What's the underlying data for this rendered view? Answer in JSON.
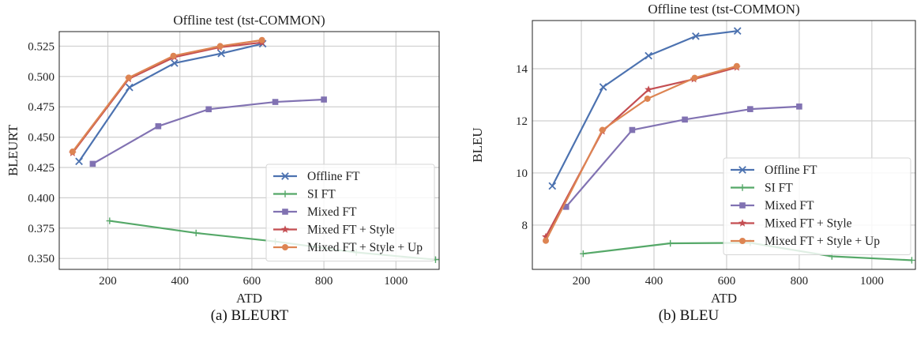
{
  "colors": {
    "Offline FT": "#4c72b0",
    "SI FT": "#55a868",
    "Mixed FT": "#8172b2",
    "Mixed FT + Style": "#c44e52",
    "Mixed FT + Style + Up": "#dd8452"
  },
  "legend_entries": [
    "Offline FT",
    "SI FT",
    "Mixed FT",
    "Mixed FT + Style",
    "Mixed FT + Style + Up"
  ],
  "captions": [
    "(a) BLEURT",
    "(b) BLEU"
  ],
  "chart_data": [
    {
      "type": "line",
      "title": "Offline test (tst-COMMON)",
      "xlabel": "ATD",
      "ylabel": "BLEURT",
      "xlim": [
        65,
        1120
      ],
      "ylim": [
        0.341,
        0.537
      ],
      "xticks": [
        200,
        400,
        600,
        800,
        1000
      ],
      "yticks": [
        0.35,
        0.375,
        0.4,
        0.425,
        0.45,
        0.475,
        0.5,
        0.525
      ],
      "ytick_labels": [
        "0.350",
        "0.375",
        "0.400",
        "0.425",
        "0.450",
        "0.475",
        "0.500",
        "0.525"
      ],
      "grid": true,
      "legend": "lower-right",
      "series": [
        {
          "name": "Offline FT",
          "marker": "x",
          "x": [
            120,
            260,
            385,
            515,
            630
          ],
          "y": [
            0.43,
            0.491,
            0.511,
            0.519,
            0.527
          ]
        },
        {
          "name": "SI FT",
          "marker": "plus",
          "x": [
            205,
            445,
            665,
            890,
            1110
          ],
          "y": [
            0.381,
            0.371,
            0.364,
            0.355,
            0.349
          ]
        },
        {
          "name": "Mixed FT",
          "marker": "square",
          "x": [
            158,
            340,
            480,
            665,
            800
          ],
          "y": [
            0.428,
            0.459,
            0.473,
            0.479,
            0.481
          ]
        },
        {
          "name": "Mixed FT + Style",
          "marker": "star",
          "x": [
            102,
            258,
            385,
            510,
            628
          ],
          "y": [
            0.437,
            0.498,
            0.516,
            0.524,
            0.528
          ]
        },
        {
          "name": "Mixed FT + Style + Up",
          "marker": "circle",
          "x": [
            102,
            258,
            382,
            512,
            628
          ],
          "y": [
            0.438,
            0.499,
            0.517,
            0.525,
            0.53
          ]
        }
      ]
    },
    {
      "type": "line",
      "title": "Offline test (tst-COMMON)",
      "xlabel": "ATD",
      "ylabel": "BLEU",
      "xlim": [
        65,
        1120
      ],
      "ylim": [
        6.3,
        15.85
      ],
      "xticks": [
        200,
        400,
        600,
        800,
        1000
      ],
      "yticks": [
        8,
        10,
        12,
        14
      ],
      "ytick_labels": [
        "8",
        "10",
        "12",
        "14"
      ],
      "grid": true,
      "legend": "lower-right",
      "series": [
        {
          "name": "Offline FT",
          "marker": "x",
          "x": [
            120,
            260,
            385,
            515,
            630
          ],
          "y": [
            9.5,
            13.3,
            14.5,
            15.25,
            15.45
          ]
        },
        {
          "name": "SI FT",
          "marker": "plus",
          "x": [
            205,
            445,
            665,
            890,
            1110
          ],
          "y": [
            6.9,
            7.3,
            7.32,
            6.8,
            6.65
          ]
        },
        {
          "name": "Mixed FT",
          "marker": "square",
          "x": [
            158,
            340,
            485,
            665,
            800
          ],
          "y": [
            8.7,
            11.65,
            12.05,
            12.45,
            12.55
          ]
        },
        {
          "name": "Mixed FT + Style",
          "marker": "star",
          "x": [
            102,
            258,
            385,
            510,
            628
          ],
          "y": [
            7.55,
            11.6,
            13.2,
            13.6,
            14.05
          ]
        },
        {
          "name": "Mixed FT + Style + Up",
          "marker": "circle",
          "x": [
            102,
            258,
            382,
            512,
            628
          ],
          "y": [
            7.4,
            11.65,
            12.85,
            13.65,
            14.1
          ]
        }
      ]
    }
  ]
}
